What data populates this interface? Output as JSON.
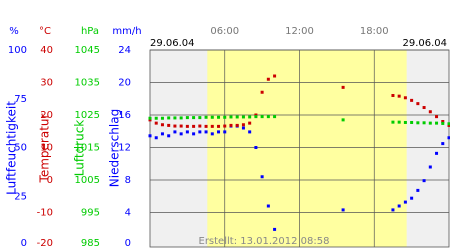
{
  "chart_data": {
    "type": "scatter",
    "date_left": "29.06.04",
    "date_right": "29.06.04",
    "footer": "Erstellt: 13.01.2012 08:58",
    "xlim": [
      0,
      24
    ],
    "xticks": [
      {
        "value": 6,
        "label": "06:00"
      },
      {
        "value": 12,
        "label": "12:00"
      },
      {
        "value": 18,
        "label": "18:00"
      }
    ],
    "daylight": [
      4.6,
      20.6
    ],
    "grid": true,
    "axes": [
      {
        "unit": "%",
        "label": "Luftfeuchtigkeit",
        "color": "#0000ff",
        "ylim": [
          0,
          100
        ],
        "yticks": [
          0,
          25,
          50,
          75,
          100
        ]
      },
      {
        "unit": "°C",
        "label": "Temperatur",
        "color": "#cc0000",
        "ylim": [
          -20,
          40
        ],
        "yticks": [
          -20,
          -10,
          0,
          10,
          20,
          30,
          40
        ]
      },
      {
        "unit": "hPa",
        "label": "Luftdruck",
        "color": "#00cc00",
        "ylim": [
          985,
          1045
        ],
        "yticks": [
          985,
          995,
          1005,
          1015,
          1025,
          1035,
          1045
        ]
      },
      {
        "unit": "mm/h",
        "label": "Niederschlag",
        "color": "#0000ff",
        "ylim": [
          0,
          24
        ],
        "yticks": [
          0,
          4,
          8,
          12,
          16,
          20,
          24
        ]
      }
    ],
    "x": [
      0,
      0.5,
      1,
      1.5,
      2,
      2.5,
      3,
      3.5,
      4,
      4.5,
      5,
      5.5,
      6,
      6.5,
      7,
      7.5,
      8,
      8.5,
      9,
      9.5,
      10,
      15.5,
      19.5,
      20,
      20.5,
      21,
      21.5,
      22,
      22.5,
      23,
      23.5,
      24
    ],
    "series": [
      {
        "axis": 0,
        "color": "#0000ff",
        "values": [
          56,
          55,
          57,
          56,
          58,
          57,
          58,
          57,
          58,
          58,
          57,
          58,
          58,
          61,
          61,
          60,
          58,
          50,
          35,
          20,
          8,
          18,
          18,
          20,
          22,
          24,
          28,
          33,
          40,
          47,
          52,
          55
        ]
      },
      {
        "axis": 1,
        "color": "#cc0000",
        "values": [
          18.5,
          17.5,
          17,
          16.8,
          16.6,
          16.6,
          16.5,
          16.5,
          16.6,
          16.5,
          16.5,
          16.5,
          16.6,
          16.8,
          16.8,
          17,
          17.5,
          20,
          27,
          31,
          32,
          28.5,
          26,
          25.8,
          25.3,
          24.5,
          23.5,
          22.3,
          21,
          19.5,
          18,
          16.8
        ]
      },
      {
        "axis": 2,
        "color": "#00cc00",
        "values": [
          1024,
          1024,
          1024,
          1024.1,
          1024.1,
          1024.1,
          1024.2,
          1024.2,
          1024.2,
          1024.3,
          1024.3,
          1024.3,
          1024.3,
          1024.4,
          1024.4,
          1024.4,
          1024.4,
          1024.5,
          1024.5,
          1024.5,
          1024.5,
          1023.5,
          1022.8,
          1022.8,
          1022.7,
          1022.7,
          1022.6,
          1022.6,
          1022.5,
          1022.5,
          1022.4,
          1022.3
        ]
      }
    ]
  }
}
